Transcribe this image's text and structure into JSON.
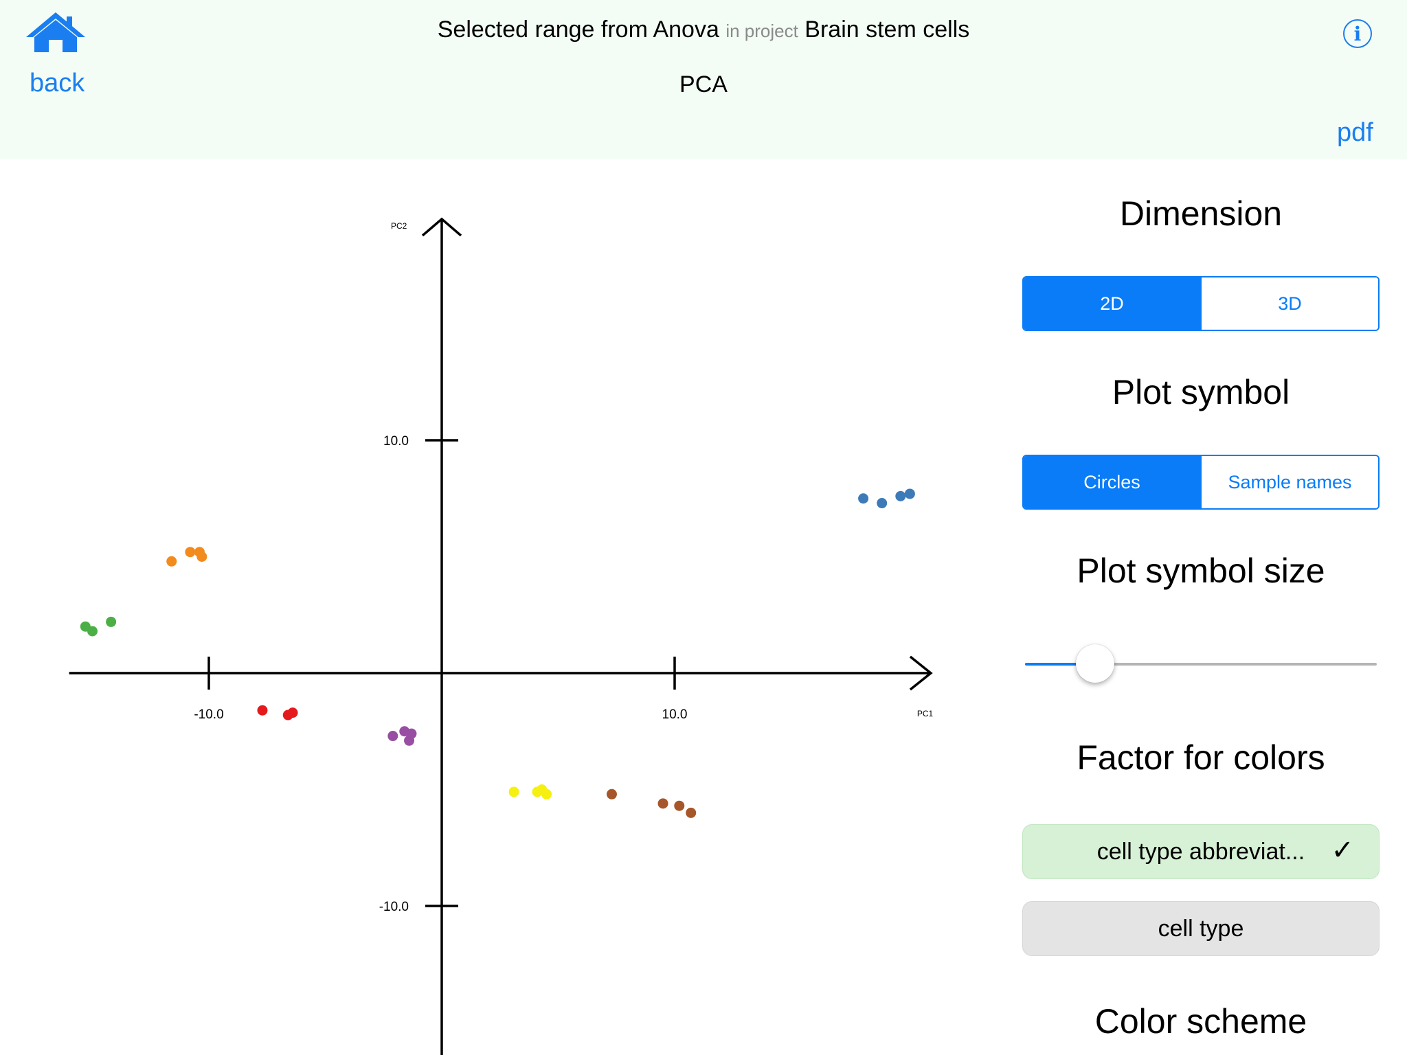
{
  "header": {
    "back_label": "back",
    "title_main": "Selected range from Anova",
    "title_in": "in project",
    "project_name": "Brain stem cells",
    "subtitle": "PCA",
    "info_symbol": "i",
    "pdf_label": "pdf",
    "home_icon": "home-icon",
    "info_icon": "info-icon"
  },
  "panel": {
    "dimension_title": "Dimension",
    "dimension_options": [
      "2D",
      "3D"
    ],
    "dimension_selected": "2D",
    "symbol_title": "Plot symbol",
    "symbol_options": [
      "Circles",
      "Sample names"
    ],
    "symbol_selected": "Circles",
    "size_title": "Plot symbol size",
    "size_level": 0.2,
    "factor_title": "Factor for colors",
    "factor_options": [
      "cell type abbreviat...",
      "cell type"
    ],
    "factor_selected": "cell type abbreviat...",
    "check_mark": "✓",
    "color_scheme_title": "Color scheme"
  },
  "colors": {
    "accent": "#0a7cf7",
    "link": "#1a7ef0",
    "header_bg": "#f3fcf5",
    "selected_bg": "#d6f1d5"
  },
  "chart_data": {
    "type": "scatter",
    "xlabel": "PC1",
    "ylabel": "PC2",
    "x_ticks": [
      -10.0,
      10.0
    ],
    "x_tick_labels": [
      "-10.0",
      "10.0"
    ],
    "y_ticks": [
      10.0,
      -10.0
    ],
    "y_tick_labels": [
      "10.0",
      "-10.0"
    ],
    "xlim": [
      -16,
      21
    ],
    "ylim": [
      -16.5,
      19.5
    ],
    "series": [
      {
        "color": "#3d7ab8",
        "x": [
          18.1,
          18.9,
          19.7,
          20.1
        ],
        "y": [
          7.5,
          7.3,
          7.6,
          7.7
        ]
      },
      {
        "color": "#f28a1c",
        "x": [
          -11.6,
          -10.8,
          -10.4,
          -10.3
        ],
        "y": [
          4.8,
          5.2,
          5.2,
          5.0
        ]
      },
      {
        "color": "#4caf46",
        "x": [
          -15.3,
          -15.0,
          -14.2
        ],
        "y": [
          2.0,
          1.8,
          2.2
        ]
      },
      {
        "color": "#e41a1c",
        "x": [
          -7.7,
          -6.6,
          -6.4
        ],
        "y": [
          -1.6,
          -1.8,
          -1.7
        ]
      },
      {
        "color": "#984ea3",
        "x": [
          -2.1,
          -1.6,
          -1.4,
          -1.3
        ],
        "y": [
          -2.7,
          -2.5,
          -2.9,
          -2.6
        ]
      },
      {
        "color": "#f5f00f",
        "x": [
          3.1,
          4.1,
          4.3,
          4.5
        ],
        "y": [
          -5.1,
          -5.1,
          -5.0,
          -5.2
        ]
      },
      {
        "color": "#a65628",
        "x": [
          7.3,
          9.5,
          10.2,
          10.7
        ],
        "y": [
          -5.2,
          -5.6,
          -5.7,
          -6.0
        ]
      }
    ]
  }
}
